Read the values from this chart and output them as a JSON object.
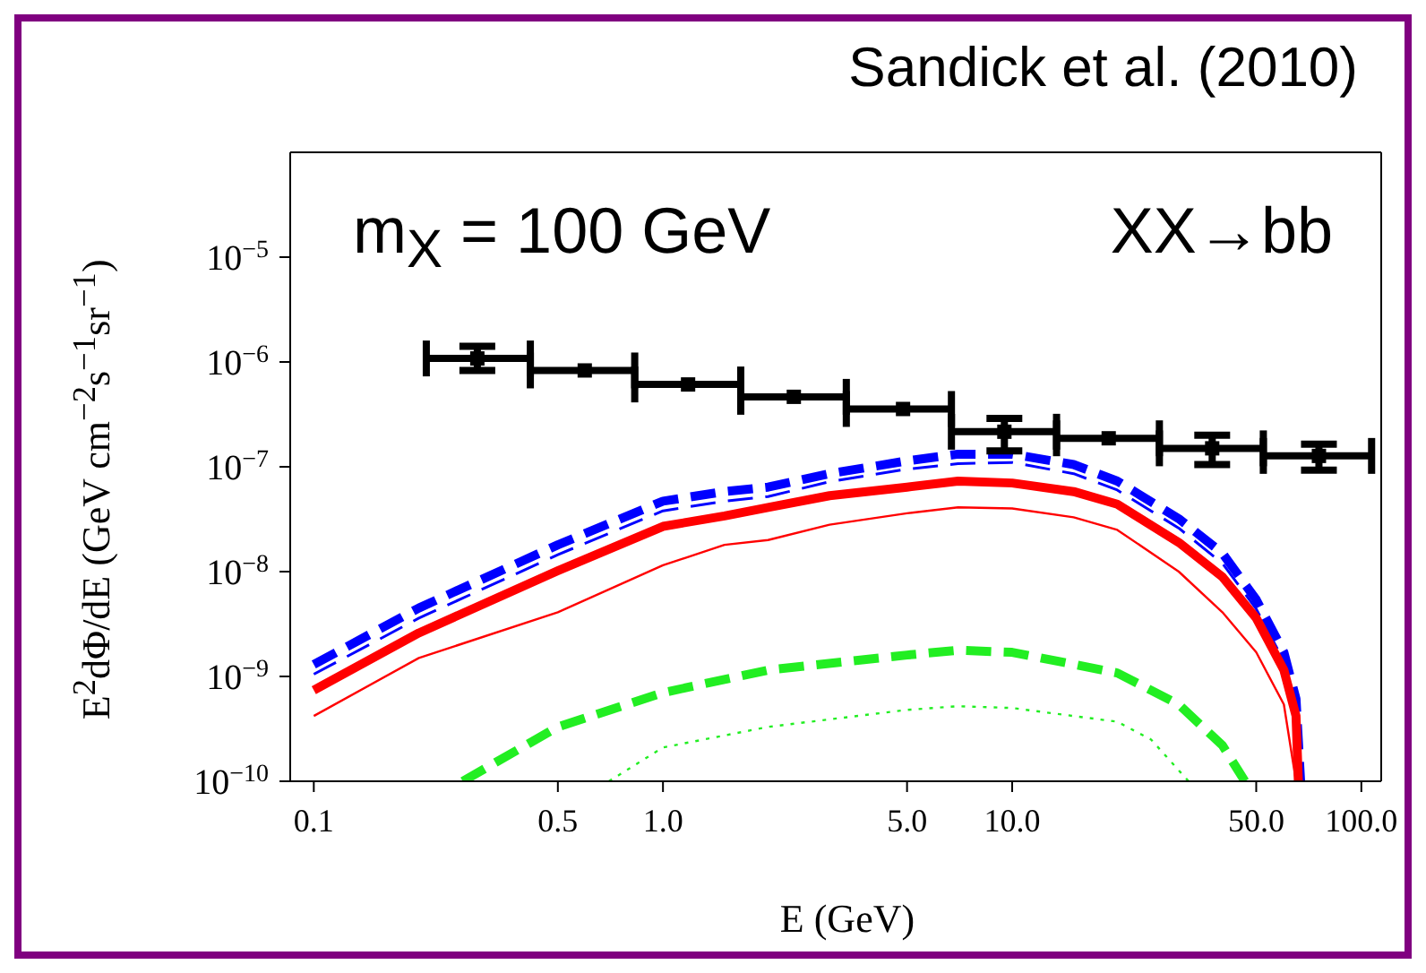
{
  "chart_data": {
    "type": "line",
    "title": "Sandick et al. (2010)",
    "xlabel": "E (GeV)",
    "ylabel": "E$^{2}$dΦ/dE (GeV cm$^{−2}$s$^{−1}$sr$^{−1}$)",
    "annotations": [
      "m$_{X}$ = 100 GeV",
      "XX→bb"
    ],
    "log": "xy",
    "grid": false,
    "xlim": [
      0.0856,
      114
    ],
    "xticks": [
      0.1,
      0.5,
      {
        "value": 1,
        "label": "1.0"
      },
      {
        "value": 5,
        "label": "5.0"
      },
      {
        "value": 10,
        "label": "10.0"
      },
      {
        "value": 50,
        "label": "50.0"
      },
      {
        "value": 100,
        "label": "100.0"
      }
    ],
    "ylim": [
      1e-10,
      0.0001
    ],
    "yticks": [
      {
        "value": 1e-10,
        "label": "10$^{−10}$"
      },
      {
        "value": 1e-09,
        "label": "10$^{−9}$"
      },
      {
        "value": 1e-08,
        "label": "10$^{−8}$"
      },
      {
        "value": 1e-07,
        "label": "10$^{−7}$"
      },
      {
        "value": 1e-06,
        "label": "10$^{−6}$"
      },
      {
        "value": 1e-05,
        "label": "10$^{−5}$"
      }
    ],
    "series": [
      {
        "type": "line",
        "color": "#0000ff",
        "line_style": "dashed",
        "x": [
          0.1,
          0.2,
          0.5,
          1,
          1.5,
          2,
          3,
          5,
          7,
          10,
          15,
          20,
          30,
          40,
          50,
          60,
          65,
          67
        ],
        "values": [
          1.3e-09,
          4.5e-09,
          1.8e-08,
          4.7e-08,
          5.8e-08,
          6.4e-08,
          8.6e-08,
          1.14e-07,
          1.32e-07,
          1.32e-07,
          1.05e-07,
          7.3e-08,
          3.2e-08,
          1.5e-08,
          5.4e-09,
          1.7e-09,
          6.1e-10,
          1e-10
        ]
      },
      {
        "type": "line",
        "color": "#0000ff",
        "line_style": "dashed",
        "x": [
          0.1,
          0.2,
          0.5,
          1,
          1.5,
          2,
          3,
          5,
          7,
          10,
          15,
          20,
          30,
          40,
          50,
          60,
          65,
          67
        ],
        "values": [
          1.05e-09,
          3.6e-09,
          1.45e-08,
          3.8e-08,
          4.7e-08,
          5.2e-08,
          7.2e-08,
          9.5e-08,
          1.07e-07,
          1.1e-07,
          8.6e-08,
          6e-08,
          2.6e-08,
          1.2e-08,
          4.4e-09,
          1.4e-09,
          5e-10,
          1e-10
        ]
      },
      {
        "type": "line",
        "color": "#ff0000",
        "line_style": "solid",
        "x": [
          0.1,
          0.2,
          0.5,
          1,
          1.5,
          2,
          3,
          5,
          7,
          10,
          15,
          20,
          30,
          40,
          50,
          60,
          65,
          66
        ],
        "values": [
          7.4e-10,
          2.6e-09,
          1.02e-08,
          2.7e-08,
          3.4e-08,
          4.1e-08,
          5.3e-08,
          6.4e-08,
          7.3e-08,
          7e-08,
          5.8e-08,
          4.4e-08,
          1.9e-08,
          8.9e-09,
          3.6e-09,
          1.15e-09,
          4.2e-10,
          1e-10
        ]
      },
      {
        "type": "line",
        "color": "#ff0000",
        "line_style": "solid",
        "x": [
          0.1,
          0.2,
          0.5,
          1,
          1.5,
          2,
          3,
          5,
          7,
          10,
          15,
          20,
          30,
          40,
          50,
          60,
          65
        ],
        "values": [
          4.2e-10,
          1.5e-09,
          4.1e-09,
          1.15e-08,
          1.8e-08,
          2e-08,
          2.8e-08,
          3.6e-08,
          4.1e-08,
          4e-08,
          3.3e-08,
          2.5e-08,
          1e-08,
          4.1e-09,
          1.7e-09,
          5.4e-10,
          1e-10
        ]
      },
      {
        "type": "line",
        "color": "#22ee22",
        "line_style": "dashed",
        "x": [
          0.267,
          0.5,
          1,
          2,
          5,
          7,
          10,
          20,
          30,
          40,
          46.4
        ],
        "values": [
          1e-10,
          3.3e-10,
          7e-10,
          1.15e-09,
          1.6e-09,
          1.78e-09,
          1.7e-09,
          1.08e-09,
          5.4e-10,
          2.2e-10,
          1e-10
        ]
      },
      {
        "type": "line",
        "color": "#22ee22",
        "line_style": "dotted",
        "x": [
          0.7,
          1,
          2,
          5,
          7,
          10,
          20,
          25,
          32
        ],
        "values": [
          1e-10,
          2.1e-10,
          3.3e-10,
          4.8e-10,
          5.2e-10,
          5e-10,
          3.7e-10,
          2.5e-10,
          1e-10
        ]
      },
      {
        "type": "scatter",
        "color": "#000000",
        "marker": "square",
        "x": [
          0.294,
          0.597,
          1.18,
          2.37,
          4.87,
          9.5,
          18.9,
          37.4,
          75.6
        ],
        "values": [
          1.08e-06,
          8.3e-07,
          6.1e-07,
          4.65e-07,
          3.56e-07,
          2.16e-07,
          1.87e-07,
          1.5e-07,
          1.27e-07
        ],
        "errors": [
          [
            8.3e-07,
            1.41e-06
          ],
          null,
          null,
          null,
          null,
          [
            1.42e-07,
            2.9e-07
          ],
          null,
          [
            1.05e-07,
            2e-07
          ],
          [
            9.3e-08,
            1.64e-07
          ]
        ],
        "xerrors": [
          [
            0.21,
            0.417
          ],
          [
            0.417,
            0.83
          ],
          [
            0.83,
            1.67
          ],
          [
            1.67,
            3.35
          ],
          [
            3.35,
            6.7
          ],
          [
            6.7,
            13.4
          ],
          [
            13.4,
            26.4
          ],
          [
            26.4,
            52.4
          ],
          [
            52.4,
            107
          ]
        ]
      }
    ]
  }
}
